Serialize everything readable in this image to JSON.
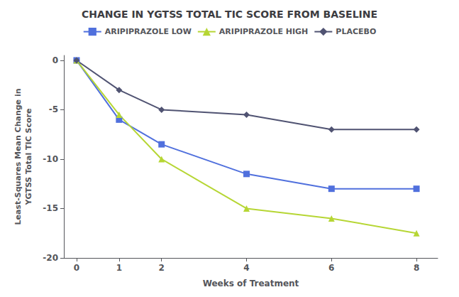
{
  "chart_data": {
    "type": "line",
    "title": "CHANGE IN YGTSS TOTAL TIC SCORE FROM BASELINE",
    "xlabel": "Weeks of Treatment",
    "ylabel": "Least-Squares Mean Change in\nYGTSS Total TIC Score",
    "x": [
      0,
      1,
      2,
      4,
      6,
      8
    ],
    "series": [
      {
        "name": "ARIPIPRAZOLE LOW",
        "marker": "square",
        "values": [
          0,
          -6.0,
          -8.5,
          -11.5,
          -13.0,
          -13.0
        ]
      },
      {
        "name": "ARIPIPRAZOLE HIGH",
        "marker": "triangle",
        "values": [
          0,
          -5.5,
          -10.0,
          -15.0,
          -16.0,
          -17.5
        ]
      },
      {
        "name": "PLACEBO",
        "marker": "diamond",
        "values": [
          0,
          -3.0,
          -5.0,
          -5.5,
          -7.0,
          -7.0
        ]
      }
    ],
    "xlim": [
      -0.3,
      8.5
    ],
    "xticks": [
      0,
      1,
      2,
      4,
      6,
      8
    ],
    "ylim": [
      -20,
      0.5
    ],
    "yticks": [
      0,
      -5,
      -10,
      -15,
      -20
    ],
    "grid": false,
    "legend": "top"
  }
}
